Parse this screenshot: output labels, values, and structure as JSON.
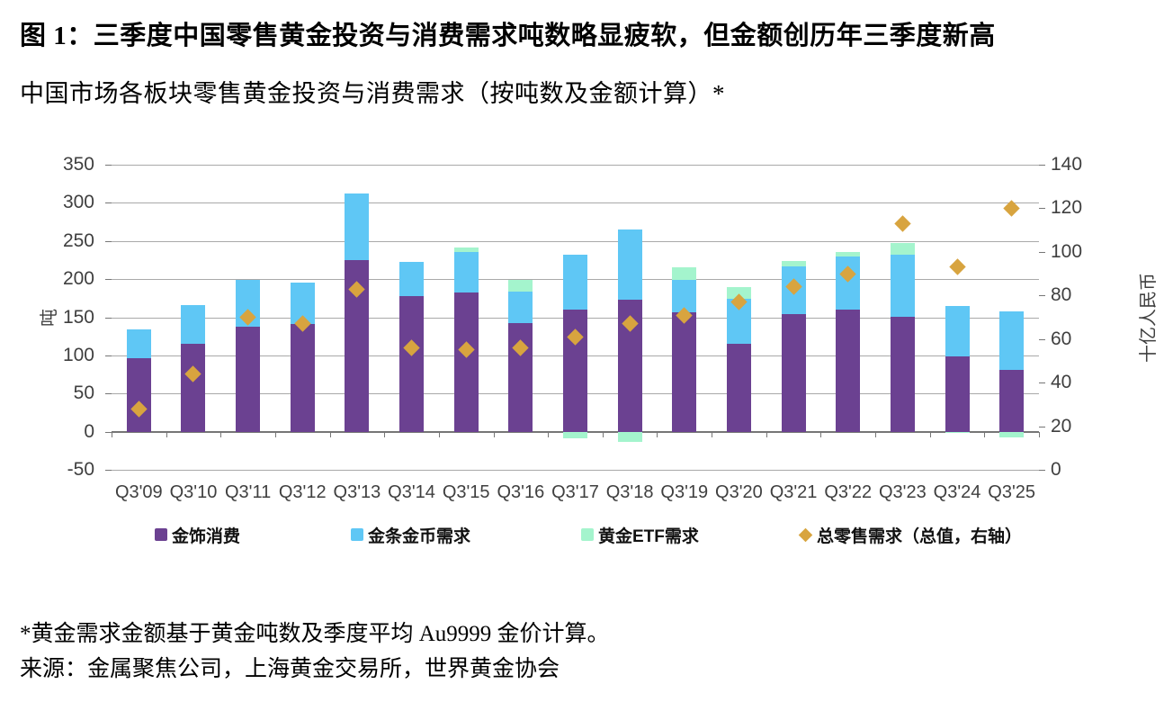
{
  "figure": {
    "title": "图 1：三季度中国零售黄金投资与消费需求吨数略显疲软，但金额创历年三季度新高",
    "subtitle": "中国市场各板块零售黄金投资与消费需求（按吨数及金额计算）*",
    "footnote": "*黄金需求金额基于黄金吨数及季度平均 Au9999 金价计算。",
    "source": "来源：金属聚焦公司，上海黄金交易所，世界黄金协会"
  },
  "chart_data": {
    "type": "bar",
    "subtype": "stacked-columns-with-diamond-scatter-overlay",
    "categories": [
      "Q3'09",
      "Q3'10",
      "Q3'11",
      "Q3'12",
      "Q3'13",
      "Q3'14",
      "Q3'15",
      "Q3'16",
      "Q3'17",
      "Q3'18",
      "Q3'19",
      "Q3'20",
      "Q3'21",
      "Q3'22",
      "Q3'23",
      "Q3'24",
      "Q3'25"
    ],
    "series": [
      {
        "key": "jewelry",
        "name": "金饰消费",
        "color": "#6b4191",
        "axis": "left",
        "values": [
          96,
          115,
          138,
          141,
          225,
          178,
          182,
          142,
          160,
          173,
          156,
          115,
          154,
          160,
          151,
          99,
          81
        ]
      },
      {
        "key": "bar-coin",
        "name": "金条金币需求",
        "color": "#5fc7f5",
        "axis": "left",
        "values": [
          38,
          51,
          61,
          54,
          87,
          44,
          53,
          42,
          72,
          92,
          43,
          59,
          63,
          70,
          81,
          66,
          77
        ]
      },
      {
        "key": "gold-etf",
        "name": "黄金ETF需求",
        "color": "#a4f4cd",
        "axis": "left",
        "values": [
          0,
          0,
          0,
          0,
          0,
          0,
          6,
          15,
          -9,
          -14,
          17,
          15,
          7,
          6,
          15,
          -2,
          -8
        ]
      }
    ],
    "scatter_series": {
      "key": "total-retail-value",
      "name": "总零售需求（总值，右轴）",
      "color": "#d8a43f",
      "axis": "right",
      "marker": "diamond",
      "values": [
        28,
        44,
        70,
        67,
        83,
        56,
        55,
        56,
        61,
        67,
        71,
        77,
        84,
        90,
        113,
        93,
        120
      ]
    },
    "left_axis": {
      "title": "吨",
      "min": -50,
      "max": 350,
      "step": 50,
      "ticks": [
        350,
        300,
        250,
        200,
        150,
        100,
        50,
        0,
        -50
      ]
    },
    "right_axis": {
      "title": "十亿人民币",
      "min": 0,
      "max": 140,
      "step": 20,
      "ticks": [
        140,
        120,
        100,
        80,
        60,
        40,
        20,
        0
      ]
    },
    "grid": true,
    "legend_position": "bottom"
  },
  "style": {
    "gridline_color": "#a9a9a9",
    "axis_line_color": "#767676",
    "tick_label_color": "#3f3f3f"
  }
}
